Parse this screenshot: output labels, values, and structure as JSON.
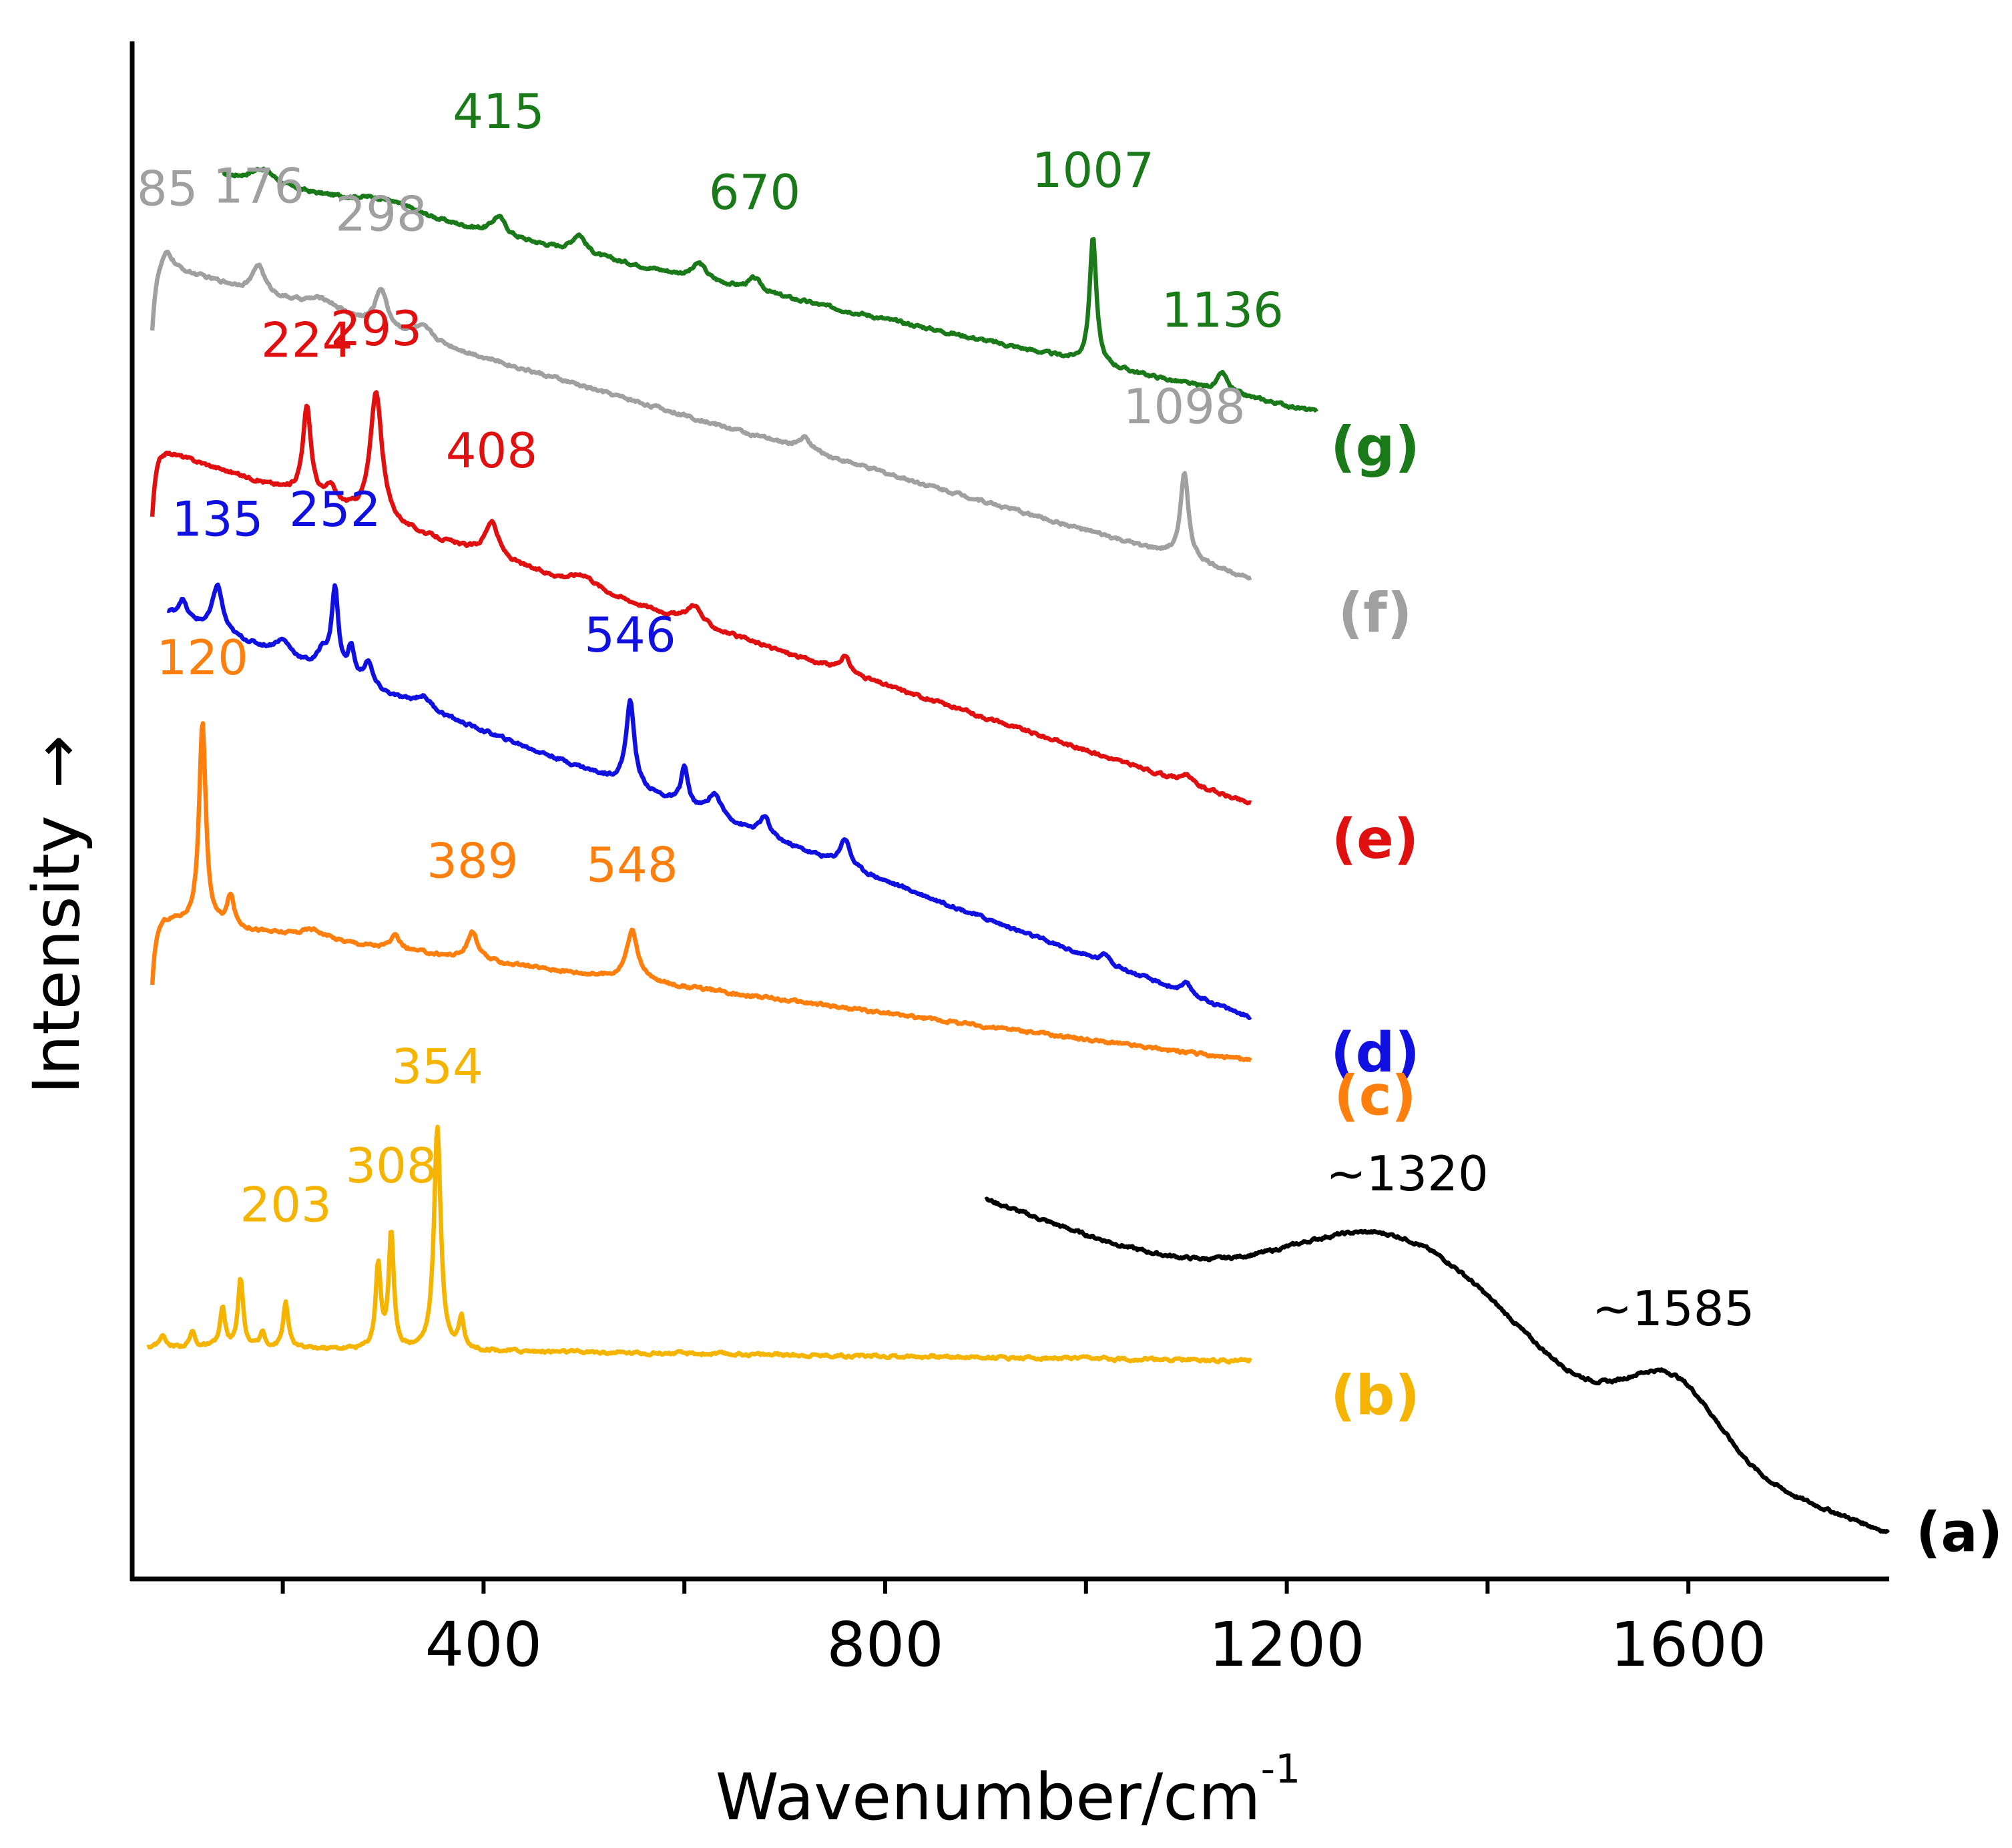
{
  "chart_data": {
    "type": "line",
    "title": "",
    "xlabel": "Wavenumber/cm",
    "xlabel_superscript": "-1",
    "ylabel": "Intensity",
    "ylabel_arrow": "→",
    "xlim": [
      50,
      1800
    ],
    "x_ticks_major": [
      400,
      800,
      1200,
      1600
    ],
    "x_tick_labels": [
      "400",
      "800",
      "1200",
      "1600"
    ],
    "x_ticks_minor": [
      200,
      600,
      1000,
      1400
    ],
    "y_ticks": false,
    "grid": false,
    "legend": "none",
    "series": [
      {
        "id": "g",
        "name": "(g)",
        "color": "#1a7a1a",
        "x_range": [
          140,
          1230
        ],
        "baseline_start": 0.912,
        "baseline_end": 0.759,
        "peaks": [
          {
            "x": 180,
            "height": 0.01,
            "width": 15
          },
          {
            "x": 300,
            "height": 0.008,
            "width": 40
          },
          {
            "x": 415,
            "height": 0.012,
            "width": 8
          },
          {
            "x": 495,
            "height": 0.012,
            "width": 8
          },
          {
            "x": 615,
            "height": 0.01,
            "width": 8
          },
          {
            "x": 670,
            "height": 0.008,
            "width": 8
          },
          {
            "x": 1007,
            "height": 0.083,
            "width": 4
          },
          {
            "x": 1136,
            "height": 0.012,
            "width": 6
          }
        ],
        "labels": [
          {
            "text": "415",
            "x": 415,
            "dy": 0.057
          },
          {
            "text": "670",
            "x": 670,
            "dy": 0.045
          },
          {
            "text": "1007",
            "x": 1007,
            "dy": 0.032
          },
          {
            "text": "1136",
            "x": 1136,
            "dy": 0.03
          }
        ],
        "tag": "(g)"
      },
      {
        "id": "f",
        "name": "(f)",
        "color": "#a0a0a0",
        "x_range": [
          70,
          1165
        ],
        "baseline_start": 0.856,
        "baseline_end": 0.651,
        "peaks": [
          {
            "x": 85,
            "height": 0.01,
            "width": 6
          },
          {
            "x": 176,
            "height": 0.018,
            "width": 7
          },
          {
            "x": 240,
            "height": 0.008,
            "width": 20
          },
          {
            "x": 298,
            "height": 0.025,
            "width": 7
          },
          {
            "x": 340,
            "height": 0.008,
            "width": 12
          },
          {
            "x": 720,
            "height": 0.008,
            "width": 8
          },
          {
            "x": 1098,
            "height": 0.055,
            "width": 5
          }
        ],
        "start_dip": true,
        "labels": [
          {
            "text": "85",
            "x": 85,
            "dy": 0.03
          },
          {
            "text": "176",
            "x": 176,
            "dy": 0.04
          },
          {
            "text": "298",
            "x": 298,
            "dy": 0.037
          },
          {
            "text": "1098",
            "x": 1098,
            "dy": 0.033
          }
        ],
        "tag": "(f)"
      },
      {
        "id": "e",
        "name": "(e)",
        "color": "#e01010",
        "x_range": [
          70,
          1165
        ],
        "baseline_start": 0.736,
        "baseline_end": 0.504,
        "peaks": [
          {
            "x": 224,
            "height": 0.058,
            "width": 5
          },
          {
            "x": 248,
            "height": 0.01,
            "width": 6
          },
          {
            "x": 293,
            "height": 0.083,
            "width": 7
          },
          {
            "x": 408,
            "height": 0.023,
            "width": 8
          },
          {
            "x": 500,
            "height": 0.008,
            "width": 15
          },
          {
            "x": 610,
            "height": 0.012,
            "width": 8
          },
          {
            "x": 760,
            "height": 0.01,
            "width": 6
          },
          {
            "x": 1100,
            "height": 0.006,
            "width": 6
          }
        ],
        "start_dip": true,
        "labels": [
          {
            "text": "224",
            "x": 224,
            "dy": 0.032
          },
          {
            "text": "293",
            "x": 293,
            "dy": 0.03
          },
          {
            "text": "408",
            "x": 408,
            "dy": 0.035
          }
        ],
        "tag": "(e)"
      },
      {
        "id": "d",
        "name": "(d)",
        "color": "#1010e0",
        "x_range": [
          85,
          1165
        ],
        "baseline_start": 0.628,
        "baseline_end": 0.365,
        "peaks": [
          {
            "x": 100,
            "height": 0.012,
            "width": 5
          },
          {
            "x": 135,
            "height": 0.03,
            "width": 6
          },
          {
            "x": 200,
            "height": 0.01,
            "width": 10
          },
          {
            "x": 240,
            "height": 0.012,
            "width": 6
          },
          {
            "x": 252,
            "height": 0.055,
            "width": 4
          },
          {
            "x": 268,
            "height": 0.02,
            "width": 4
          },
          {
            "x": 285,
            "height": 0.016,
            "width": 5
          },
          {
            "x": 340,
            "height": 0.008,
            "width": 10
          },
          {
            "x": 546,
            "height": 0.055,
            "width": 5
          },
          {
            "x": 600,
            "height": 0.025,
            "width": 4
          },
          {
            "x": 630,
            "height": 0.015,
            "width": 8
          },
          {
            "x": 680,
            "height": 0.012,
            "width": 6
          },
          {
            "x": 760,
            "height": 0.018,
            "width": 6
          },
          {
            "x": 1020,
            "height": 0.006,
            "width": 6
          },
          {
            "x": 1100,
            "height": 0.006,
            "width": 6
          }
        ],
        "labels": [
          {
            "text": "135",
            "x": 135,
            "dy": 0.032
          },
          {
            "text": "252",
            "x": 252,
            "dy": 0.038
          },
          {
            "text": "546",
            "x": 546,
            "dy": 0.032
          }
        ],
        "tag": "(d)"
      },
      {
        "id": "c",
        "name": "(c)",
        "color": "#ff7f0e",
        "x_range": [
          70,
          1165
        ],
        "baseline_start": 0.43,
        "baseline_end": 0.337,
        "peaks": [
          {
            "x": 120,
            "height": 0.13,
            "width": 4
          },
          {
            "x": 148,
            "height": 0.02,
            "width": 4
          },
          {
            "x": 230,
            "height": 0.006,
            "width": 15
          },
          {
            "x": 312,
            "height": 0.008,
            "width": 6
          },
          {
            "x": 389,
            "height": 0.018,
            "width": 6
          },
          {
            "x": 548,
            "height": 0.032,
            "width": 7
          }
        ],
        "start_dip": true,
        "labels": [
          {
            "text": "120",
            "x": 120,
            "dy": 0.032
          },
          {
            "text": "389",
            "x": 389,
            "dy": 0.035
          },
          {
            "text": "548",
            "x": 548,
            "dy": 0.032
          }
        ],
        "tag": "(c)"
      },
      {
        "id": "b",
        "name": "(b)",
        "color": "#f5b400",
        "x_range": [
          65,
          1165
        ],
        "baseline_start": 0.151,
        "baseline_end": 0.142,
        "peaks": [
          {
            "x": 80,
            "height": 0.008,
            "width": 3
          },
          {
            "x": 110,
            "height": 0.01,
            "width": 3
          },
          {
            "x": 140,
            "height": 0.025,
            "width": 3
          },
          {
            "x": 158,
            "height": 0.045,
            "width": 3
          },
          {
            "x": 180,
            "height": 0.01,
            "width": 3
          },
          {
            "x": 203,
            "height": 0.03,
            "width": 3
          },
          {
            "x": 295,
            "height": 0.055,
            "width": 3
          },
          {
            "x": 308,
            "height": 0.075,
            "width": 3
          },
          {
            "x": 354,
            "height": 0.145,
            "width": 4
          },
          {
            "x": 378,
            "height": 0.02,
            "width": 3
          }
        ],
        "labels": [
          {
            "text": "203",
            "x": 203,
            "dy": 0.052
          },
          {
            "text": "308",
            "x": 308,
            "dy": 0.03
          },
          {
            "text": "354",
            "x": 354,
            "dy": 0.028
          }
        ],
        "tag": "(b)"
      },
      {
        "id": "a",
        "name": "(a)",
        "color": "#000000",
        "x_range": [
          900,
          1800
        ],
        "baseline_start": 0.247,
        "baseline_end": 0.03,
        "broad": true,
        "peaks": [
          {
            "x": 1320,
            "height": 0.075,
            "width": 110
          },
          {
            "x": 1585,
            "height": 0.047,
            "width": 45
          }
        ],
        "labels": [
          {
            "text": "~1320",
            "x": 1320,
            "dy": 0.032
          },
          {
            "text": "~1585",
            "x": 1585,
            "dy": 0.032
          }
        ],
        "tag": "(a)"
      }
    ]
  }
}
